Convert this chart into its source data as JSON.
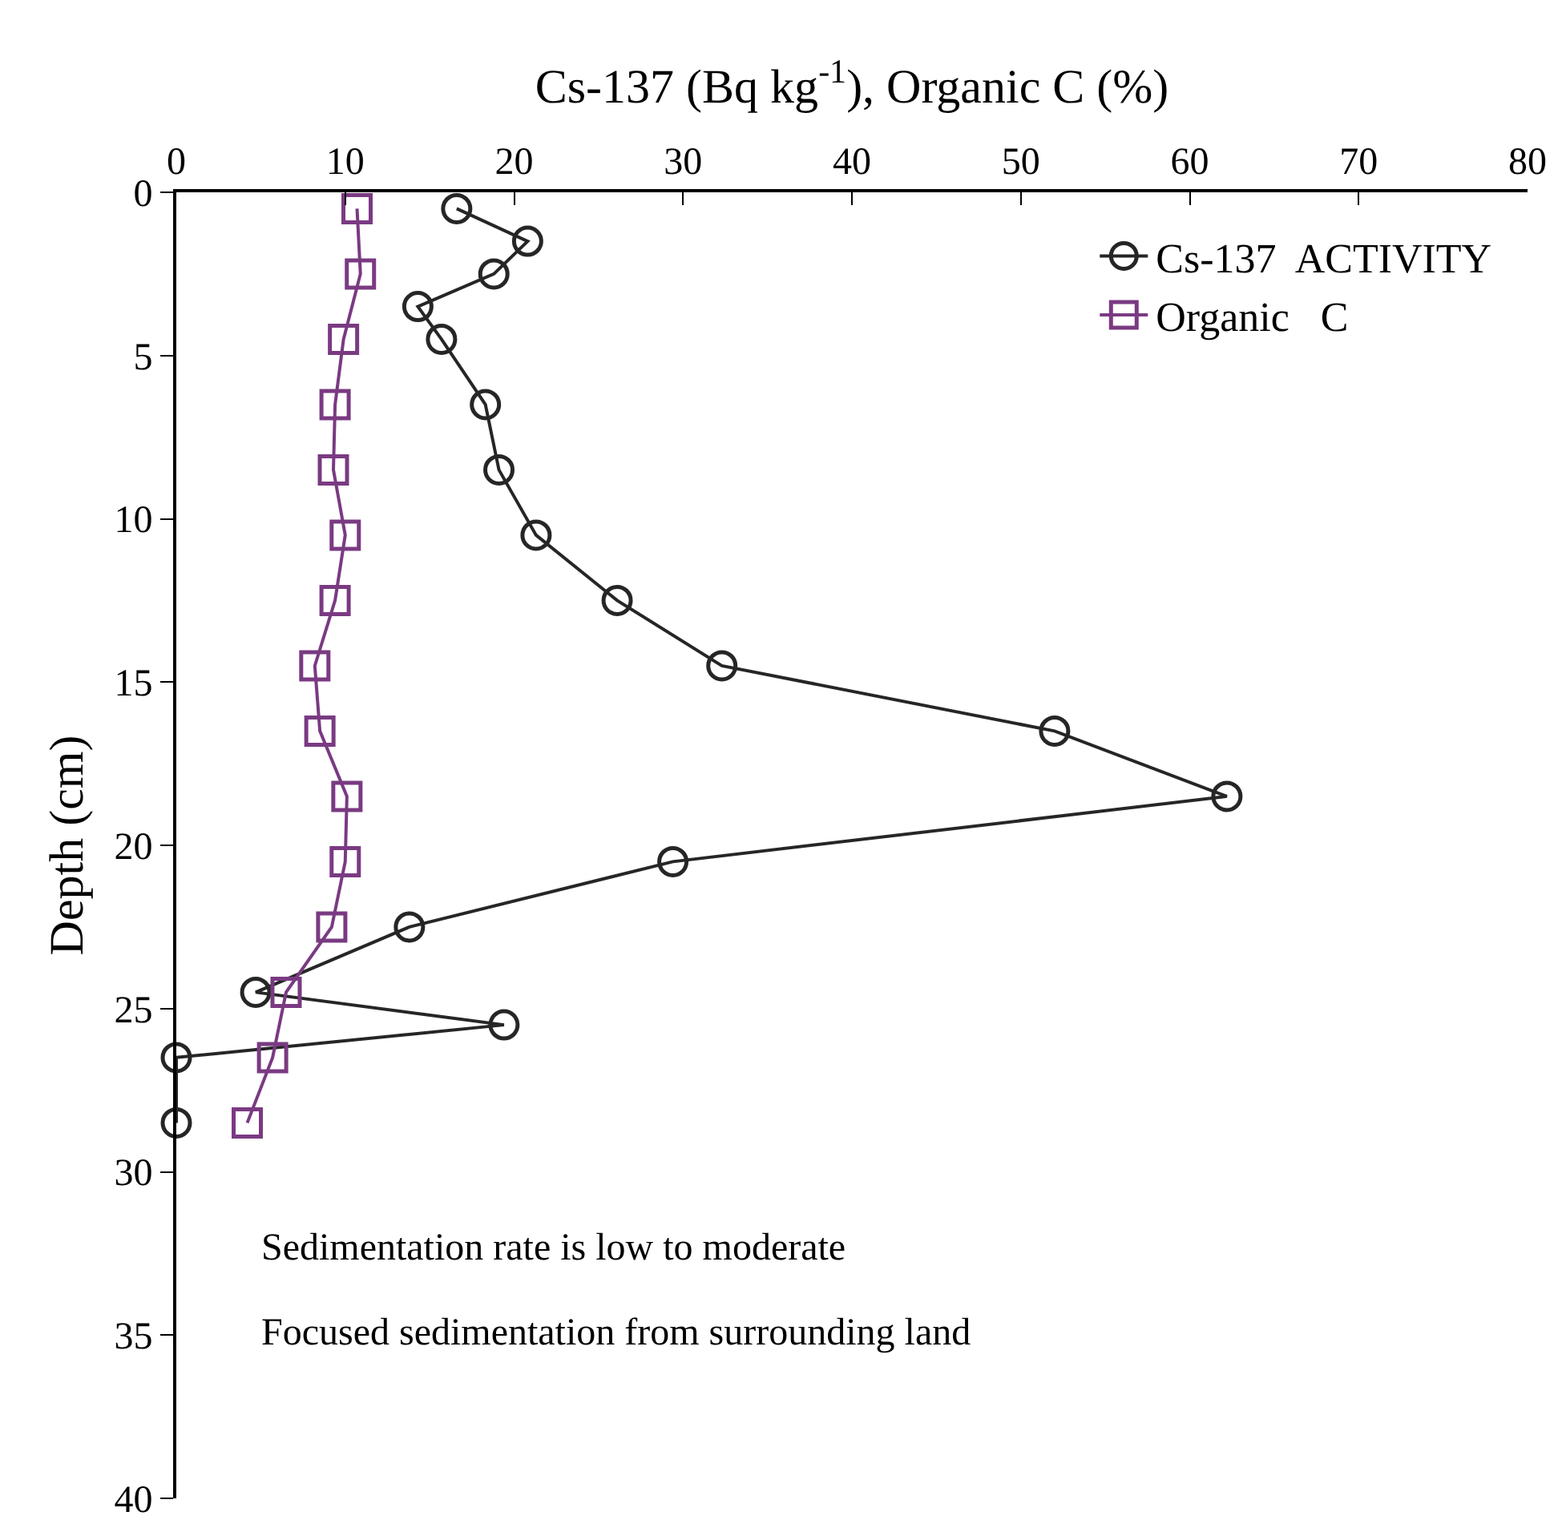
{
  "chart_data": {
    "type": "line",
    "xlabel": "Cs-137 (Bq kg$^{-1}$), Organic C (%)",
    "ylabel": "Depth (cm)",
    "xlim": [
      0,
      80
    ],
    "xticks": [
      0,
      10,
      20,
      30,
      40,
      50,
      60,
      70,
      80
    ],
    "ylim": [
      40,
      0
    ],
    "yticks": [
      0,
      5,
      10,
      15,
      20,
      25,
      30,
      35,
      40
    ],
    "legend": "top right",
    "series": [
      {
        "name": "Cs-137  ACTIVITY",
        "color": "#262626",
        "marker": "circle",
        "x": [
          16.6,
          20.8,
          18.8,
          14.3,
          15.7,
          18.3,
          19.1,
          21.3,
          26.1,
          32.3,
          52.0,
          62.2,
          29.4,
          13.8,
          4.7,
          19.4,
          0,
          0
        ],
        "values": [
          0.5,
          1.5,
          2.5,
          3.5,
          4.5,
          6.5,
          8.5,
          10.5,
          12.5,
          14.5,
          16.5,
          18.5,
          20.5,
          22.5,
          24.5,
          25.5,
          26.5,
          28.5
        ]
      },
      {
        "name": "Organic   C",
        "color": "#7a3a82",
        "marker": "square",
        "x": [
          10.7,
          10.9,
          9.9,
          9.4,
          9.3,
          10.0,
          9.4,
          8.2,
          8.5,
          10.1,
          10.0,
          9.2,
          6.5,
          5.7,
          4.2
        ],
        "values": [
          0.5,
          2.5,
          4.5,
          6.5,
          8.5,
          10.5,
          12.5,
          14.5,
          16.5,
          18.5,
          20.5,
          22.5,
          24.5,
          26.5,
          28.5
        ]
      }
    ],
    "annotations": [
      "Sedimentation rate is low to moderate",
      "Focused sedimentation from surrounding land"
    ]
  }
}
